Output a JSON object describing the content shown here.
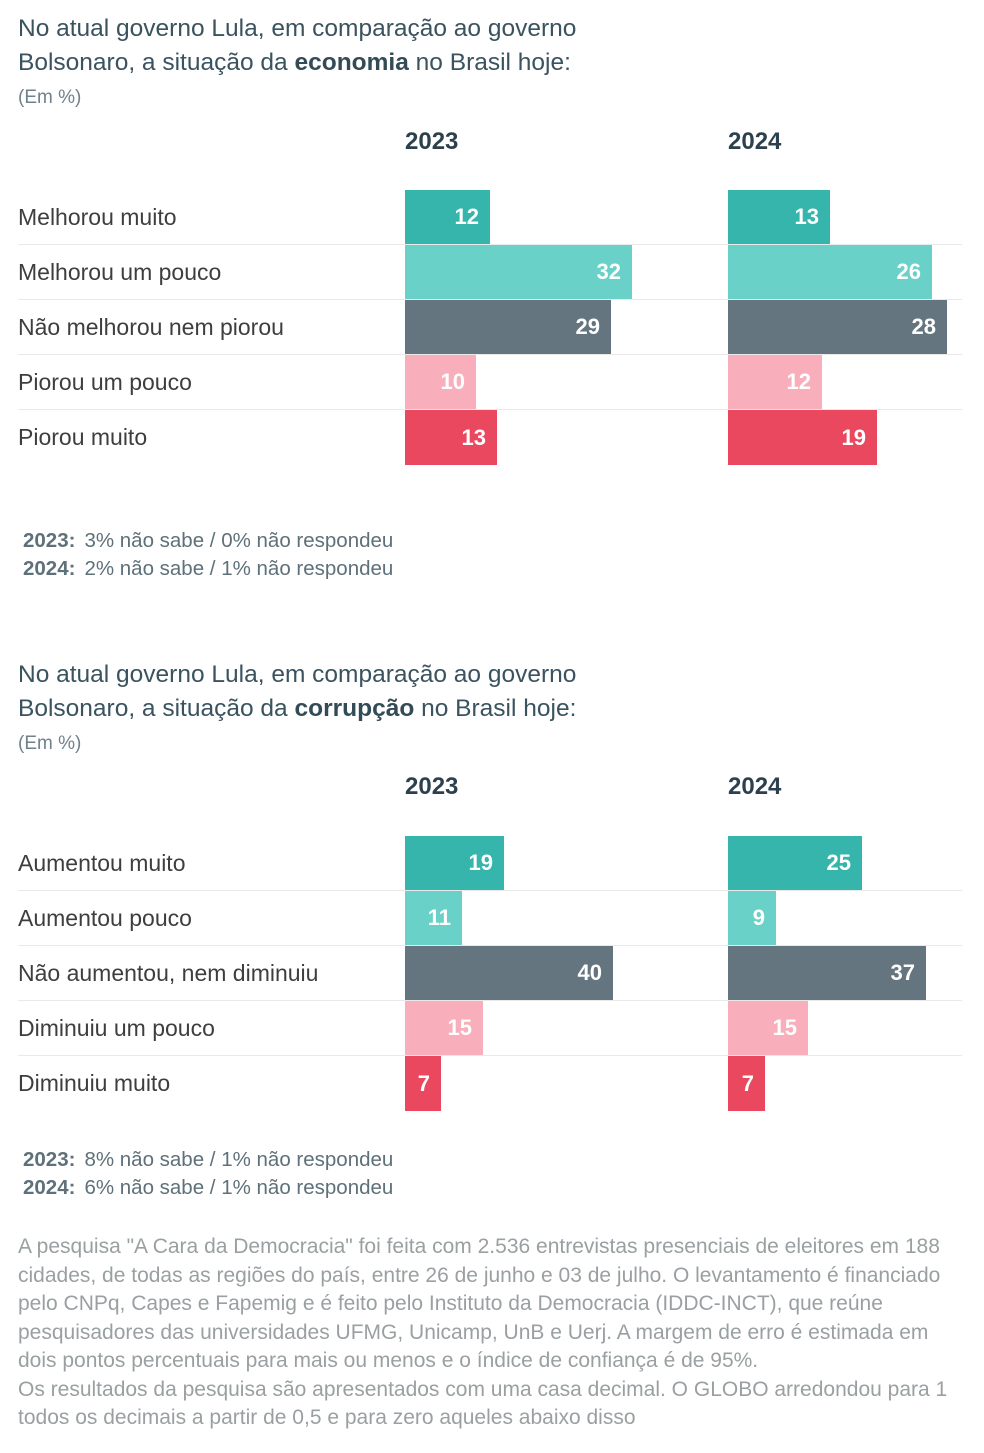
{
  "chart_data": [
    {
      "type": "bar",
      "orientation": "horizontal-grouped",
      "title": "No atual governo Lula, em comparação ao governo Bolsonaro, a situação da economia no Brasil hoje:",
      "title_parts": {
        "line1": "No atual governo Lula, em comparação ao governo",
        "line2_prefix": "Bolsonaro, a situação da ",
        "line2_bold": "economia",
        "line2_suffix": " no Brasil hoje:"
      },
      "unit_label": "(Em %)",
      "categories": [
        "Melhorou muito",
        "Melhorou um pouco",
        "Não melhorou nem piorou",
        "Piorou um pouco",
        "Piorou muito"
      ],
      "series": [
        {
          "name": "2023",
          "values": [
            12,
            32,
            29,
            10,
            13
          ]
        },
        {
          "name": "2024",
          "values": [
            13,
            26,
            28,
            12,
            19
          ]
        }
      ],
      "bar_colors": [
        "#35b5ab",
        "#69d1c8",
        "#64757f",
        "#f9aebb",
        "#e9485f"
      ],
      "value_label_style": "inside-end white",
      "xlim": [
        0,
        40
      ],
      "grid": "row-separators-only",
      "footnotes": [
        {
          "year": "2023:",
          "text": "3% não sabe /  0% não respondeu"
        },
        {
          "year": "2024:",
          "text": "2% não sabe /  1% não respondeu"
        }
      ]
    },
    {
      "type": "bar",
      "orientation": "horizontal-grouped",
      "title": "No atual governo Lula, em comparação ao governo Bolsonaro, a situação da corrupção no Brasil hoje:",
      "title_parts": {
        "line1": "No atual governo Lula, em comparação ao governo",
        "line2_prefix": "Bolsonaro, a situação da ",
        "line2_bold": "corrupção",
        "line2_suffix": " no Brasil hoje:"
      },
      "unit_label": "(Em %)",
      "categories": [
        "Aumentou muito",
        "Aumentou pouco",
        "Não aumentou, nem diminuiu",
        "Diminuiu um pouco",
        "Diminuiu muito"
      ],
      "series": [
        {
          "name": "2023",
          "values": [
            19,
            11,
            40,
            15,
            7
          ]
        },
        {
          "name": "2024",
          "values": [
            25,
            9,
            37,
            15,
            7
          ]
        }
      ],
      "bar_colors": [
        "#35b5ab",
        "#69d1c8",
        "#64757f",
        "#f9aebb",
        "#e9485f"
      ],
      "value_label_style": "inside-end white",
      "xlim": [
        0,
        45
      ],
      "grid": "row-separators-only",
      "footnotes": [
        {
          "year": "2023:",
          "text": "8% não sabe /  1% não respondeu"
        },
        {
          "year": "2024:",
          "text": "6% não sabe /  1% não respondeu"
        }
      ]
    }
  ],
  "methodology": {
    "paragraphs": [
      "A pesquisa \"A Cara da Democracia\" foi feita com 2.536 entrevistas presenciais de eleitores em 188 cidades, de todas as regiões do país, entre 26 de junho e 03 de julho. O levantamento é financiado pelo CNPq, Capes e Fapemig e é feito pelo Instituto da Democracia (IDDC-INCT), que reúne pesquisadores das universidades UFMG, Unicamp, UnB e Uerj. A margem de erro é estimada em dois pontos percentuais para mais ou menos e o índice de confiança é de 95%.",
      "Os resultados da pesquisa são apresentados com uma casa decimal. O GLOBO arredondou para 1 todos os decimais a partir de 0,5 e para zero aqueles abaixo disso"
    ]
  }
}
